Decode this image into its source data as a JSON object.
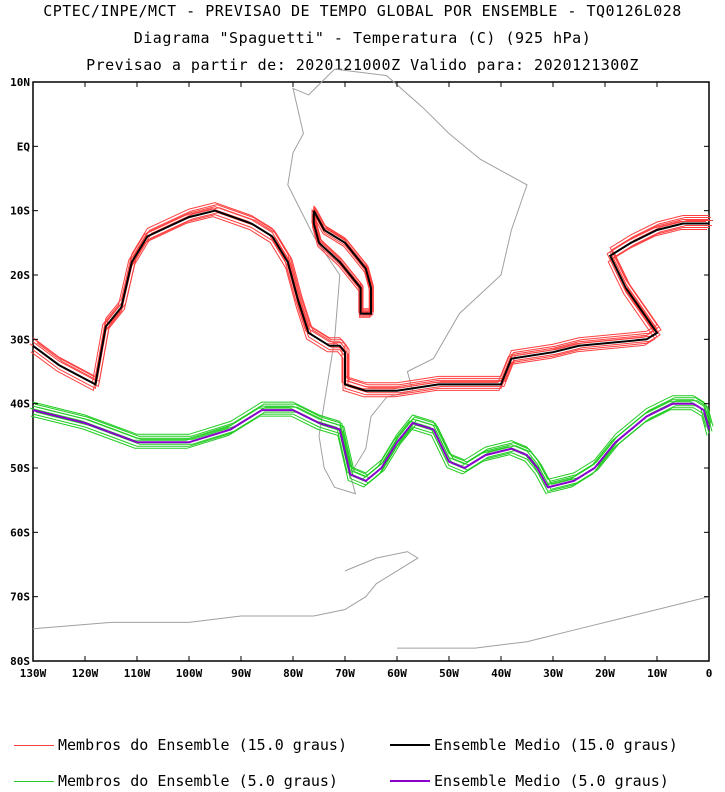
{
  "header": {
    "line1": "CPTEC/INPE/MCT - PREVISAO DE TEMPO GLOBAL POR ENSEMBLE - TQ0126L028",
    "line2": "Diagrama \"Spaguetti\" - Temperatura (C) (925 hPa)",
    "line3": "Previsao a partir de: 2020121000Z  Valido para: 2020121300Z"
  },
  "map": {
    "lat_ticks": [
      "10N",
      "EQ",
      "10S",
      "20S",
      "30S",
      "40S",
      "50S",
      "60S",
      "70S",
      "80S"
    ],
    "lon_ticks": [
      "130W",
      "120W",
      "110W",
      "100W",
      "90W",
      "80W",
      "70W",
      "60W",
      "50W",
      "40W",
      "30W",
      "20W",
      "10W",
      "0"
    ],
    "coastline_color": "#a0a0a0"
  },
  "legend": [
    {
      "label": "Membros do Ensemble (15.0 graus)",
      "color": "#ff4040"
    },
    {
      "label": "Ensemble Medio (15.0 graus)",
      "color": "#000000"
    },
    {
      "label": "Membros do Ensemble (5.0 graus)",
      "color": "#22cc22"
    },
    {
      "label": "Ensemble Medio (5.0 graus)",
      "color": "#8800cc"
    }
  ],
  "contours": {
    "red_mean": [
      [
        -130,
        -31
      ],
      [
        -125,
        -34
      ],
      [
        -118,
        -37
      ],
      [
        -116,
        -28
      ],
      [
        -113,
        -25
      ],
      [
        -111,
        -18
      ],
      [
        -108,
        -14
      ],
      [
        -100,
        -11
      ],
      [
        -95,
        -10
      ],
      [
        -88,
        -12
      ],
      [
        -84,
        -14
      ],
      [
        -81,
        -18
      ],
      [
        -79,
        -24
      ],
      [
        -77,
        -29
      ],
      [
        -73,
        -31
      ],
      [
        -71,
        -31
      ],
      [
        -70,
        -32
      ],
      [
        -70,
        -37
      ],
      [
        -66,
        -38
      ],
      [
        -60,
        -38
      ],
      [
        -52,
        -37
      ],
      [
        -45,
        -37
      ],
      [
        -40,
        -37
      ],
      [
        -38,
        -33
      ],
      [
        -30,
        -32
      ],
      [
        -25,
        -31
      ],
      [
        -12,
        -30
      ],
      [
        -10,
        -29
      ],
      [
        -16,
        -22
      ],
      [
        -19,
        -17
      ],
      [
        -15,
        -15
      ],
      [
        -10,
        -13
      ],
      [
        -5,
        -12
      ],
      [
        0,
        -12
      ]
    ],
    "red_loop": [
      [
        -76,
        -10
      ],
      [
        -74,
        -13
      ],
      [
        -70,
        -15
      ],
      [
        -66,
        -19
      ],
      [
        -65,
        -22
      ],
      [
        -65,
        -26
      ],
      [
        -67,
        -26
      ],
      [
        -67,
        -22
      ],
      [
        -71,
        -18
      ],
      [
        -75,
        -15
      ],
      [
        -76,
        -12
      ],
      [
        -76,
        -10
      ]
    ],
    "green_mean": [
      [
        -130,
        -41
      ],
      [
        -120,
        -43
      ],
      [
        -110,
        -46
      ],
      [
        -100,
        -46
      ],
      [
        -92,
        -44
      ],
      [
        -86,
        -41
      ],
      [
        -80,
        -41
      ],
      [
        -75,
        -43
      ],
      [
        -71,
        -44
      ],
      [
        -69,
        -51
      ],
      [
        -66,
        -52
      ],
      [
        -63,
        -50
      ],
      [
        -60,
        -46
      ],
      [
        -57,
        -43
      ],
      [
        -53,
        -44
      ],
      [
        -50,
        -49
      ],
      [
        -47,
        -50
      ],
      [
        -43,
        -48
      ],
      [
        -38,
        -47
      ],
      [
        -35,
        -48
      ],
      [
        -33,
        -50
      ],
      [
        -31,
        -53
      ],
      [
        -26,
        -52
      ],
      [
        -22,
        -50
      ],
      [
        -18,
        -46
      ],
      [
        -12,
        -42
      ],
      [
        -7,
        -40
      ],
      [
        -3,
        -40
      ],
      [
        -1,
        -41
      ],
      [
        0,
        -44
      ]
    ]
  }
}
